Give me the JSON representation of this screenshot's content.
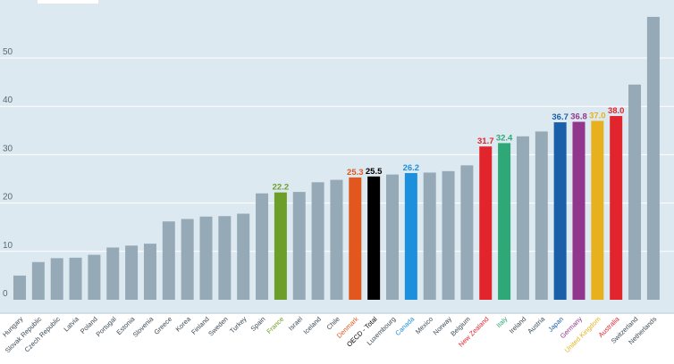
{
  "chart_data": {
    "type": "bar",
    "ylim": [
      0,
      60
    ],
    "y_ticks": [
      0,
      10,
      20,
      30,
      40,
      50
    ],
    "grid": true,
    "default_color": "#95a9b6",
    "categories": [
      "Hungary",
      "Slovak Republic",
      "Czech Republic",
      "Latvia",
      "Poland",
      "Portugal",
      "Estonia",
      "Slovenia",
      "Greece",
      "Korea",
      "Finland",
      "Sweden",
      "Turkey",
      "Spain",
      "France",
      "Israel",
      "Iceland",
      "Chile",
      "Denmark",
      "OECD - Total",
      "Luxembourg",
      "Canada",
      "Mexico",
      "Norway",
      "Belgium",
      "New Zealand",
      "Italy",
      "Ireland",
      "Austria",
      "Japan",
      "Germany",
      "United Kingdom",
      "Australia",
      "Switzerland",
      "Netherlands"
    ],
    "values": [
      5.0,
      7.8,
      8.6,
      8.7,
      9.3,
      10.8,
      11.2,
      11.6,
      16.2,
      16.7,
      17.2,
      17.3,
      17.8,
      22.0,
      22.2,
      22.3,
      24.3,
      24.8,
      25.3,
      25.5,
      25.9,
      26.2,
      26.3,
      26.6,
      27.8,
      31.7,
      32.4,
      33.8,
      34.8,
      36.7,
      36.8,
      37.0,
      38.0,
      44.5,
      58.5
    ],
    "highlights": [
      {
        "category": "France",
        "color": "#6e9e2a",
        "label": "22.2"
      },
      {
        "category": "Denmark",
        "color": "#e2571e",
        "label": "25.3"
      },
      {
        "category": "OECD - Total",
        "color": "#000000",
        "label": "25.5"
      },
      {
        "category": "Canada",
        "color": "#1c8fdd",
        "label": "26.2"
      },
      {
        "category": "New Zealand",
        "color": "#e2252d",
        "label": "31.7"
      },
      {
        "category": "Italy",
        "color": "#2da876",
        "label": "32.4"
      },
      {
        "category": "Japan",
        "color": "#1a5fa8",
        "label": "36.7"
      },
      {
        "category": "Germany",
        "color": "#92358c",
        "label": "36.8"
      },
      {
        "category": "United Kingdom",
        "color": "#e6b11c",
        "label": "37.0"
      },
      {
        "category": "Australia",
        "color": "#e2252d",
        "label": "38.0"
      }
    ]
  }
}
